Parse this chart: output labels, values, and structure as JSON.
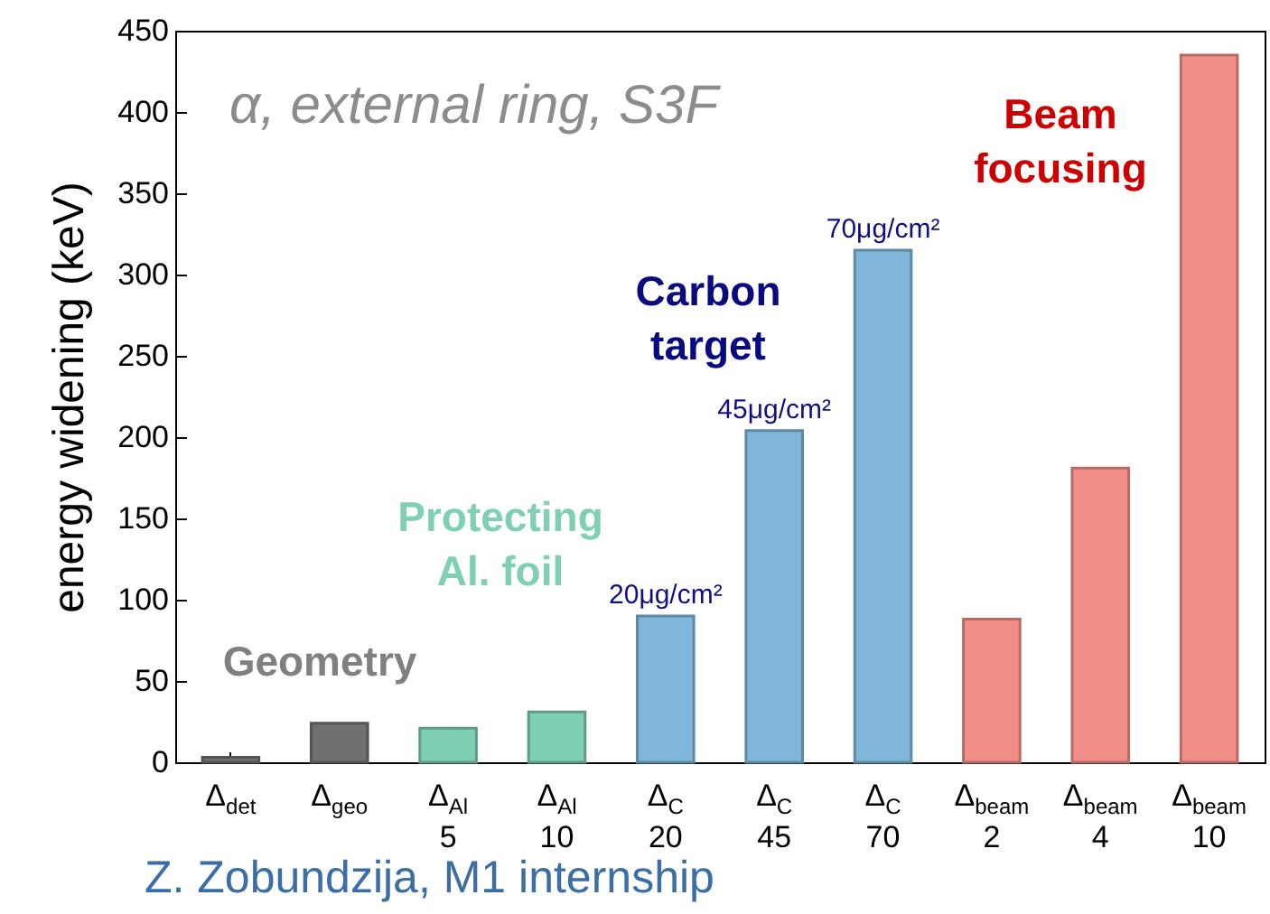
{
  "chart_data": {
    "type": "bar",
    "title": "α, external ring, S3F",
    "ylabel": "energy widening (keV)",
    "categories": [
      "Δ$_{det}$",
      "Δ$_{geo}$",
      "Δ$_{Al}$\n5",
      "Δ$_{Al}$\n10",
      "Δ$_{C}$\n20",
      "Δ$_{C}$\n45",
      "Δ$_{C}$\n70",
      "Δ$_{beam}$\n2",
      "Δ$_{beam}$\n4",
      "Δ$_{beam}$\n10"
    ],
    "values": [
      3,
      24,
      21,
      31,
      90,
      204,
      315,
      88,
      181,
      435
    ],
    "colors": [
      "#707070",
      "#707070",
      "#7fcfb5",
      "#7fcfb5",
      "#7fb6d9",
      "#7fb6d9",
      "#7fb6d9",
      "#f28e88",
      "#f28e88",
      "#f28e88"
    ],
    "ylim": [
      0,
      450
    ],
    "yticks": [
      0,
      50,
      100,
      150,
      200,
      250,
      300,
      350,
      400,
      450
    ],
    "grid": false,
    "annotations": [
      {
        "text": "20μg/cm²",
        "x": "Δ$_{C}$\n20",
        "y": 90
      },
      {
        "text": "45μg/cm²",
        "x": "Δ$_{C}$\n45",
        "y": 204
      },
      {
        "text": "70μg/cm²",
        "x": "Δ$_{C}$\n70",
        "y": 315
      },
      "Geometry",
      "Protecting\nAl. foil",
      "Carbon\ntarget",
      "Beam\nfocusing",
      "Z. Zobundzija, M1 internship"
    ]
  }
}
